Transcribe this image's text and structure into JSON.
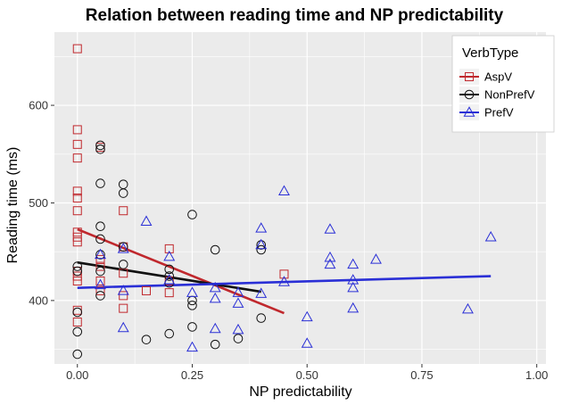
{
  "chart_data": {
    "type": "scatter",
    "title": "Relation between reading time and NP predictability",
    "xlabel": "NP predictability",
    "ylabel": "Reading time (ms)",
    "xlim": [
      -0.05,
      1.02
    ],
    "ylim": [
      335,
      675
    ],
    "x_ticks": [
      0,
      0.25,
      0.5,
      0.75,
      1.0
    ],
    "x_tick_labels": [
      "0.00",
      "0.25",
      "0.50",
      "0.75",
      "1.00"
    ],
    "y_ticks": [
      400,
      500,
      600
    ],
    "y_tick_labels": [
      "400",
      "500",
      "600"
    ],
    "grid": true,
    "background": "#ebebeb",
    "grid_color": "#ffffff",
    "legend": {
      "title": "VerbType",
      "position": "top-right"
    },
    "series": [
      {
        "name": "AspV",
        "color": "#c0282d",
        "marker": "square",
        "points": [
          [
            0,
            658
          ],
          [
            0,
            575
          ],
          [
            0,
            560
          ],
          [
            0,
            546
          ],
          [
            0,
            512
          ],
          [
            0,
            505
          ],
          [
            0,
            492
          ],
          [
            0,
            470
          ],
          [
            0,
            465
          ],
          [
            0,
            460
          ],
          [
            0,
            430
          ],
          [
            0,
            425
          ],
          [
            0,
            420
          ],
          [
            0,
            390
          ],
          [
            0,
            378
          ],
          [
            0.05,
            557
          ],
          [
            0.05,
            442
          ],
          [
            0.05,
            435
          ],
          [
            0.05,
            420
          ],
          [
            0.05,
            410
          ],
          [
            0.1,
            492
          ],
          [
            0.1,
            455
          ],
          [
            0.1,
            428
          ],
          [
            0.1,
            405
          ],
          [
            0.1,
            392
          ],
          [
            0.15,
            410
          ],
          [
            0.2,
            453
          ],
          [
            0.2,
            420
          ],
          [
            0.2,
            408
          ],
          [
            0.45,
            427
          ]
        ],
        "trend": [
          [
            0,
            473
          ],
          [
            0.45,
            387
          ]
        ]
      },
      {
        "name": "NonPrefV",
        "color": "#111111",
        "marker": "circle",
        "points": [
          [
            0,
            435
          ],
          [
            0,
            430
          ],
          [
            0,
            388
          ],
          [
            0,
            368
          ],
          [
            0,
            345
          ],
          [
            0.05,
            559
          ],
          [
            0.05,
            555
          ],
          [
            0.05,
            520
          ],
          [
            0.05,
            476
          ],
          [
            0.05,
            463
          ],
          [
            0.05,
            447
          ],
          [
            0.05,
            430
          ],
          [
            0.05,
            405
          ],
          [
            0.1,
            519
          ],
          [
            0.1,
            510
          ],
          [
            0.1,
            455
          ],
          [
            0.1,
            437
          ],
          [
            0.15,
            360
          ],
          [
            0.2,
            432
          ],
          [
            0.2,
            425
          ],
          [
            0.2,
            418
          ],
          [
            0.2,
            366
          ],
          [
            0.25,
            488
          ],
          [
            0.25,
            400
          ],
          [
            0.25,
            395
          ],
          [
            0.25,
            373
          ],
          [
            0.3,
            452
          ],
          [
            0.3,
            355
          ],
          [
            0.35,
            361
          ],
          [
            0.4,
            457
          ],
          [
            0.4,
            452
          ],
          [
            0.4,
            382
          ]
        ],
        "trend": [
          [
            0,
            439
          ],
          [
            0.4,
            409
          ]
        ]
      },
      {
        "name": "PrefV",
        "color": "#2a2fd6",
        "marker": "triangle",
        "points": [
          [
            0.05,
            447
          ],
          [
            0.05,
            416
          ],
          [
            0.1,
            453
          ],
          [
            0.1,
            410
          ],
          [
            0.1,
            372
          ],
          [
            0.15,
            481
          ],
          [
            0.2,
            445
          ],
          [
            0.2,
            421
          ],
          [
            0.25,
            408
          ],
          [
            0.25,
            352
          ],
          [
            0.3,
            413
          ],
          [
            0.3,
            402
          ],
          [
            0.3,
            371
          ],
          [
            0.35,
            408
          ],
          [
            0.35,
            397
          ],
          [
            0.35,
            370
          ],
          [
            0.4,
            474
          ],
          [
            0.4,
            457
          ],
          [
            0.4,
            407
          ],
          [
            0.45,
            512
          ],
          [
            0.45,
            419
          ],
          [
            0.5,
            383
          ],
          [
            0.5,
            356
          ],
          [
            0.55,
            473
          ],
          [
            0.55,
            444
          ],
          [
            0.55,
            437
          ],
          [
            0.6,
            437
          ],
          [
            0.6,
            421
          ],
          [
            0.6,
            413
          ],
          [
            0.6,
            392
          ],
          [
            0.65,
            442
          ],
          [
            0.85,
            391
          ],
          [
            0.9,
            465
          ]
        ],
        "trend": [
          [
            0,
            413
          ],
          [
            0.9,
            425
          ]
        ]
      }
    ]
  }
}
